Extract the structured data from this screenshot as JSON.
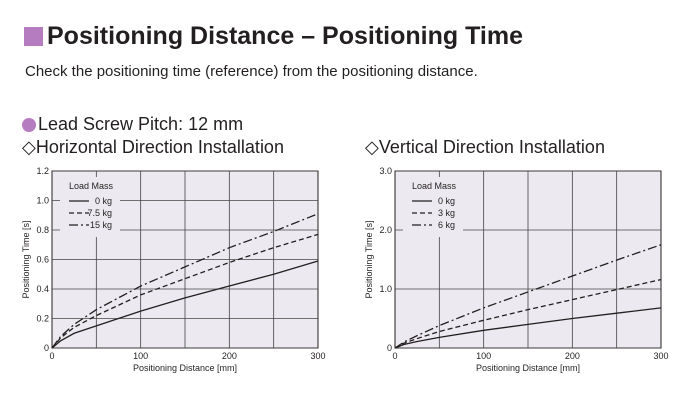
{
  "header": {
    "title": "Positioning Distance – Positioning Time",
    "description": "Check the positioning time (reference) from the positioning distance.",
    "pitch_label": "Lead Screw Pitch: 12 mm",
    "accent_color": "#b57cc0"
  },
  "chart_data": [
    {
      "type": "line",
      "title": "◇Horizontal Direction Installation",
      "xlabel": "Positioning Distance [mm]",
      "ylabel": "Positioning Time [s]",
      "xlim": [
        0,
        300
      ],
      "ylim": [
        0,
        1.2
      ],
      "xticks": [
        0,
        100,
        200,
        300
      ],
      "xtick_labels": [
        "0",
        "100",
        "200",
        "300"
      ],
      "xgrid": [
        50,
        100,
        150,
        200,
        250
      ],
      "yticks": [
        0,
        0.2,
        0.4,
        0.6,
        0.8,
        1.0,
        1.2
      ],
      "ytick_labels": [
        "0",
        "0.2",
        "0.4",
        "0.6",
        "0.8",
        "1.0",
        "1.2"
      ],
      "grid": true,
      "legend_title": "Load Mass",
      "legend_placement": "top-left",
      "x": [
        0,
        10,
        25,
        50,
        100,
        150,
        200,
        250,
        300
      ],
      "series": [
        {
          "name": "0 kg",
          "style": "solid",
          "values": [
            0,
            0.05,
            0.1,
            0.15,
            0.25,
            0.34,
            0.42,
            0.5,
            0.59
          ]
        },
        {
          "name": "7.5 kg",
          "style": "dashed",
          "values": [
            0,
            0.07,
            0.14,
            0.22,
            0.36,
            0.47,
            0.58,
            0.68,
            0.77
          ]
        },
        {
          "name": "15 kg",
          "style": "dashdot",
          "values": [
            0,
            0.08,
            0.16,
            0.26,
            0.42,
            0.55,
            0.68,
            0.79,
            0.91
          ]
        }
      ]
    },
    {
      "type": "line",
      "title": "◇Vertical Direction Installation",
      "xlabel": "Positioning Distance [mm]",
      "ylabel": "Positioning Time [s]",
      "xlim": [
        0,
        300
      ],
      "ylim": [
        0,
        3.0
      ],
      "xticks": [
        0,
        100,
        200,
        300
      ],
      "xtick_labels": [
        "0",
        "100",
        "200",
        "300"
      ],
      "xgrid": [
        50,
        100,
        150,
        200,
        250
      ],
      "yticks": [
        0,
        1.0,
        2.0,
        3.0
      ],
      "ytick_labels": [
        "0",
        "1.0",
        "2.0",
        "3.0"
      ],
      "grid": true,
      "legend_title": "Load Mass",
      "legend_placement": "top-left",
      "x": [
        0,
        10,
        25,
        50,
        100,
        150,
        200,
        250,
        300
      ],
      "series": [
        {
          "name": "0 kg",
          "style": "solid",
          "values": [
            0,
            0.06,
            0.11,
            0.18,
            0.3,
            0.4,
            0.5,
            0.59,
            0.68
          ]
        },
        {
          "name": "3 kg",
          "style": "dashed",
          "values": [
            0,
            0.08,
            0.16,
            0.28,
            0.47,
            0.65,
            0.82,
            0.99,
            1.16
          ]
        },
        {
          "name": "6 kg",
          "style": "dashdot",
          "values": [
            0,
            0.1,
            0.21,
            0.38,
            0.68,
            0.95,
            1.22,
            1.49,
            1.75
          ]
        }
      ]
    }
  ]
}
